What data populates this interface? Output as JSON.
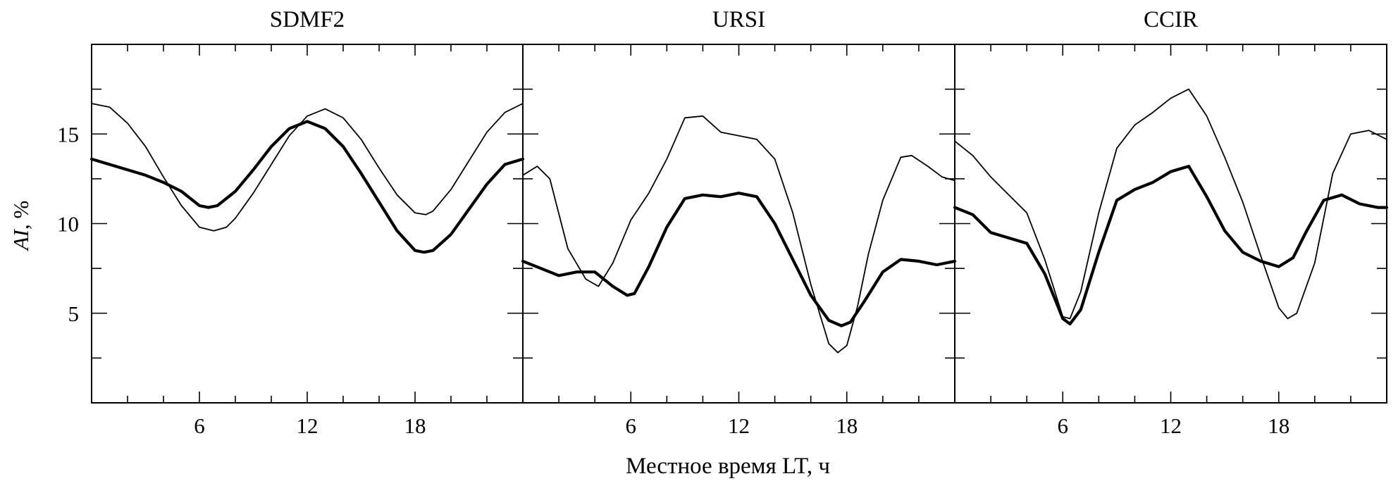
{
  "figure": {
    "ylabel_main": "AI",
    "ylabel_unit": ",  %",
    "xlabel": "Местное время  LT,  ч"
  },
  "chart_data": [
    {
      "type": "line",
      "title": "SDMF2",
      "xlim": [
        0,
        24
      ],
      "ylim": [
        0,
        20
      ],
      "xticks": [
        6,
        12,
        18
      ],
      "yticks": [
        5,
        10,
        15
      ],
      "series": [
        {
          "style": "thick",
          "x": [
            0,
            1,
            2,
            3,
            4,
            5,
            6,
            6.5,
            7,
            8,
            9,
            10,
            11,
            12,
            13,
            14,
            15,
            16,
            17,
            18,
            18.5,
            19,
            20,
            21,
            22,
            23,
            24
          ],
          "y": [
            13.6,
            13.3,
            13.0,
            12.7,
            12.3,
            11.8,
            11.0,
            10.9,
            11.0,
            11.8,
            13.0,
            14.3,
            15.3,
            15.7,
            15.3,
            14.3,
            12.8,
            11.2,
            9.6,
            8.5,
            8.4,
            8.5,
            9.4,
            10.8,
            12.2,
            13.3,
            13.6
          ]
        },
        {
          "style": "thin",
          "x": [
            0,
            1,
            2,
            3,
            4,
            5,
            6,
            6.8,
            7.5,
            8,
            9,
            10,
            11,
            12,
            13,
            14,
            15,
            16,
            17,
            18,
            18.6,
            19,
            20,
            21,
            22,
            23,
            24
          ],
          "y": [
            16.7,
            16.5,
            15.6,
            14.3,
            12.6,
            11.0,
            9.8,
            9.6,
            9.8,
            10.3,
            11.7,
            13.3,
            14.9,
            16.0,
            16.4,
            15.9,
            14.7,
            13.1,
            11.6,
            10.6,
            10.5,
            10.7,
            11.9,
            13.5,
            15.1,
            16.2,
            16.7
          ]
        }
      ]
    },
    {
      "type": "line",
      "title": "URSI",
      "xlim": [
        0,
        24
      ],
      "ylim": [
        0,
        20
      ],
      "xticks": [
        6,
        12,
        18
      ],
      "yticks": [
        5,
        10,
        15
      ],
      "series": [
        {
          "style": "thick",
          "x": [
            0,
            1,
            2,
            3,
            4,
            5,
            5.8,
            6.2,
            7,
            8,
            9,
            10,
            11,
            12,
            13,
            14,
            15,
            16,
            17,
            17.7,
            18.2,
            19,
            20,
            21,
            22,
            23,
            24
          ],
          "y": [
            7.9,
            7.5,
            7.1,
            7.3,
            7.3,
            6.5,
            6.0,
            6.1,
            7.6,
            9.8,
            11.4,
            11.6,
            11.5,
            11.7,
            11.5,
            10.0,
            8.0,
            6.0,
            4.6,
            4.3,
            4.5,
            5.7,
            7.3,
            8.0,
            7.9,
            7.7,
            7.9
          ]
        },
        {
          "style": "thin",
          "x": [
            0,
            0.8,
            1.5,
            2.5,
            3.5,
            4.2,
            5,
            6,
            7,
            8,
            9,
            10,
            11,
            12,
            13,
            14,
            15,
            16,
            17,
            17.5,
            18,
            18.6,
            19.2,
            20,
            21,
            21.6,
            22.5,
            23.3,
            24
          ],
          "y": [
            12.7,
            13.2,
            12.5,
            8.6,
            6.9,
            6.5,
            7.8,
            10.2,
            11.7,
            13.6,
            15.9,
            16.0,
            15.1,
            14.9,
            14.7,
            13.6,
            10.6,
            6.6,
            3.3,
            2.8,
            3.2,
            5.4,
            8.3,
            11.3,
            13.7,
            13.8,
            13.2,
            12.6,
            12.4
          ]
        }
      ]
    },
    {
      "type": "line",
      "title": "CCIR",
      "xlim": [
        0,
        24
      ],
      "ylim": [
        0,
        20
      ],
      "xticks": [
        6,
        12,
        18
      ],
      "yticks": [
        5,
        10,
        15
      ],
      "series": [
        {
          "style": "thick",
          "x": [
            0,
            1,
            2,
            3,
            4,
            5,
            6,
            6.4,
            7,
            8,
            9,
            10,
            11,
            12,
            13,
            14,
            15,
            16,
            17,
            18,
            18.8,
            19.5,
            20.5,
            21.5,
            22.5,
            23.5,
            24
          ],
          "y": [
            10.9,
            10.5,
            9.5,
            9.2,
            8.9,
            7.2,
            4.7,
            4.4,
            5.2,
            8.4,
            11.3,
            11.9,
            12.3,
            12.9,
            13.2,
            11.5,
            9.6,
            8.4,
            7.9,
            7.6,
            8.1,
            9.5,
            11.3,
            11.6,
            11.1,
            10.9,
            10.9
          ]
        },
        {
          "style": "thin",
          "x": [
            0,
            1,
            2,
            3,
            4,
            5,
            6,
            6.4,
            7,
            8,
            9,
            10,
            11,
            12,
            13,
            14,
            15,
            16,
            17,
            18,
            18.5,
            19,
            20,
            21,
            22,
            23,
            24
          ],
          "y": [
            14.6,
            13.8,
            12.6,
            11.6,
            10.6,
            8.0,
            4.8,
            4.7,
            6.2,
            10.6,
            14.2,
            15.5,
            16.2,
            17.0,
            17.5,
            16.0,
            13.7,
            11.2,
            8.2,
            5.3,
            4.7,
            5.0,
            7.8,
            12.8,
            15.0,
            15.2,
            14.7
          ]
        }
      ]
    }
  ]
}
